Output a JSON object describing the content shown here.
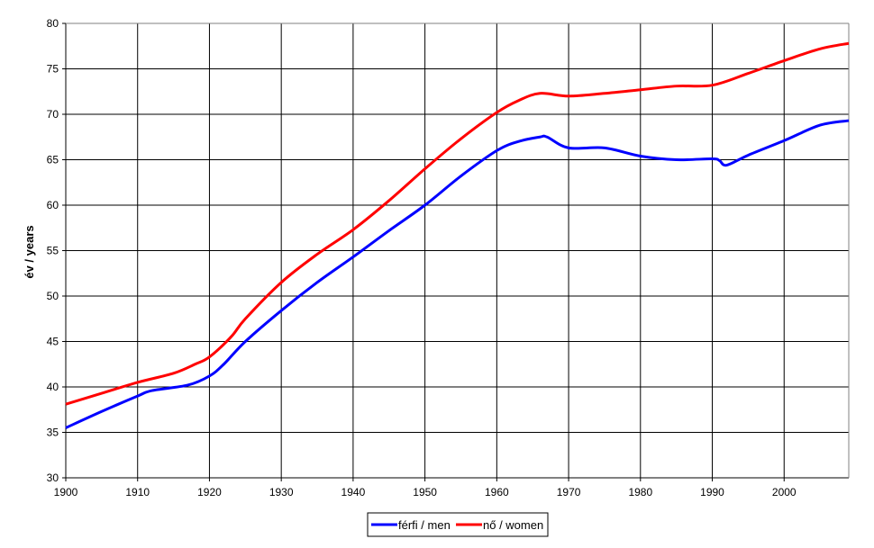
{
  "chart_data": {
    "type": "line",
    "title": "",
    "xlabel": "",
    "ylabel": "év / years",
    "xlim": [
      1900,
      2009
    ],
    "ylim": [
      30,
      80
    ],
    "x_ticks": [
      1900,
      1910,
      1920,
      1930,
      1940,
      1950,
      1960,
      1970,
      1980,
      1990,
      2000
    ],
    "y_ticks": [
      30,
      35,
      40,
      45,
      50,
      55,
      60,
      65,
      70,
      75,
      80
    ],
    "grid": true,
    "legend_position": "bottom",
    "series": [
      {
        "name": "férfi / men",
        "color": "#0000ff",
        "x": [
          1900,
          1905,
          1910,
          1912,
          1917,
          1920,
          1922,
          1925,
          1930,
          1935,
          1940,
          1945,
          1950,
          1955,
          1960,
          1963,
          1966,
          1967,
          1970,
          1975,
          1980,
          1985,
          1990,
          1991,
          1992,
          1995,
          2000,
          2005,
          2009
        ],
        "y": [
          35.5,
          37.3,
          39.0,
          39.6,
          40.2,
          41.2,
          42.5,
          45.0,
          48.4,
          51.5,
          54.3,
          57.2,
          60.0,
          63.2,
          66.0,
          67.0,
          67.5,
          67.5,
          66.3,
          66.3,
          65.4,
          65.0,
          65.1,
          64.9,
          64.4,
          65.5,
          67.1,
          68.8,
          69.3
        ]
      },
      {
        "name": "nő / women",
        "color": "#ff0000",
        "x": [
          1900,
          1905,
          1910,
          1915,
          1918,
          1920,
          1923,
          1925,
          1930,
          1935,
          1940,
          1945,
          1950,
          1955,
          1960,
          1963,
          1966,
          1970,
          1975,
          1980,
          1985,
          1990,
          1995,
          2000,
          2005,
          2009
        ],
        "y": [
          38.1,
          39.3,
          40.5,
          41.5,
          42.5,
          43.3,
          45.5,
          47.5,
          51.5,
          54.6,
          57.3,
          60.5,
          64.0,
          67.3,
          70.2,
          71.5,
          72.3,
          72.0,
          72.3,
          72.7,
          73.1,
          73.2,
          74.5,
          75.9,
          77.2,
          77.8
        ]
      }
    ]
  }
}
